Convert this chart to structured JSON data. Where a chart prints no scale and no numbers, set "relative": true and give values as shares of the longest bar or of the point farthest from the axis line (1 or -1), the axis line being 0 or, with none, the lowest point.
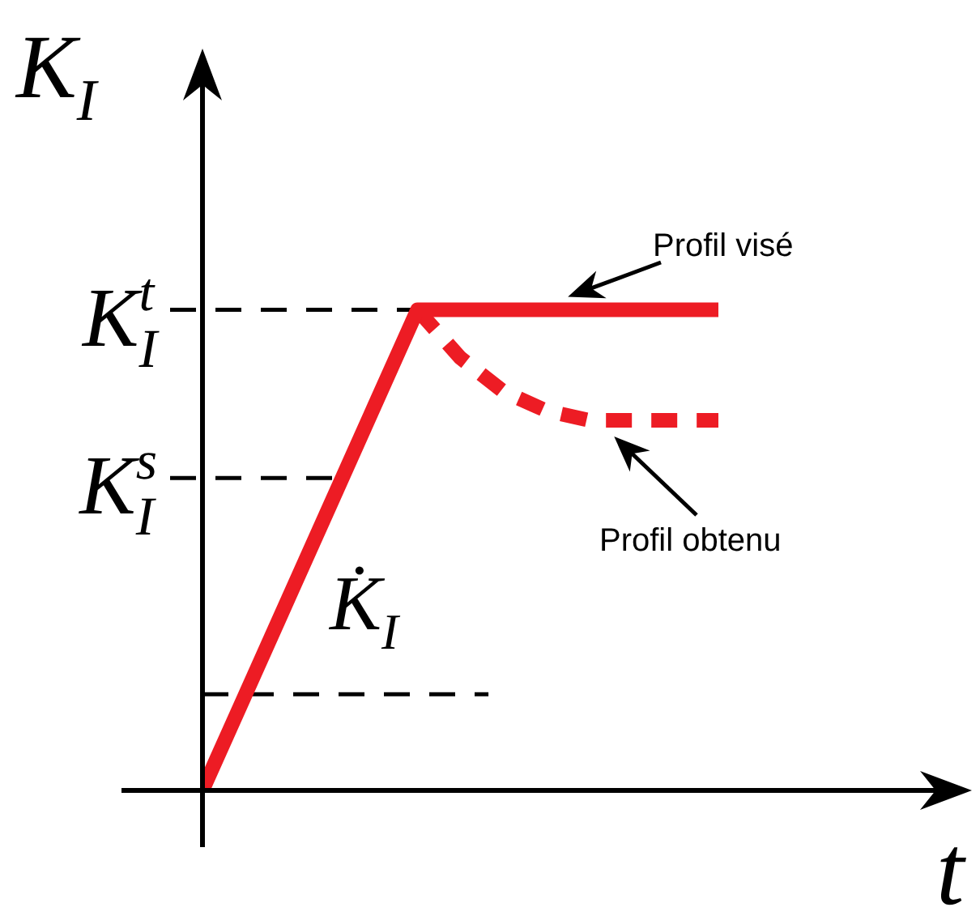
{
  "chart_data": {
    "type": "line",
    "relative": true,
    "xlabel": "t",
    "ylabel": "K$_{I}$",
    "categories": [
      null,
      null,
      null,
      null,
      null,
      null,
      null,
      null,
      null,
      null,
      null,
      null,
      null
    ],
    "series": [
      {
        "color": "#ed1c24",
        "line_style": "solid",
        "values": [
          0,
          0.2,
          0.4,
          0.6,
          0.8,
          1,
          1,
          1,
          1,
          1,
          1,
          1,
          1
        ]
      },
      {
        "color": "#ed1c24",
        "line_style": "dashed",
        "values": [
          null,
          null,
          null,
          null,
          null,
          1,
          0.9,
          0.83,
          0.79,
          0.77,
          0.77,
          0.77,
          0.77
        ]
      }
    ],
    "ref_lines": [
      {
        "axis": "y",
        "value": 1,
        "label": "K$_{I}$$^{t}$",
        "line_style": "dashed",
        "color": "#000000"
      },
      {
        "axis": "y",
        "value": 0.65,
        "label": "K$_{I}$$^{s}$",
        "line_style": "dashed",
        "color": "#000000"
      },
      {
        "axis": "y",
        "value": 0.2,
        "line_style": "dashed",
        "color": "#000000"
      }
    ],
    "annotations": [
      "Profil visé",
      "Profil obtenu",
      "K̇$_{I}$"
    ],
    "legend": false,
    "marker": "none"
  }
}
